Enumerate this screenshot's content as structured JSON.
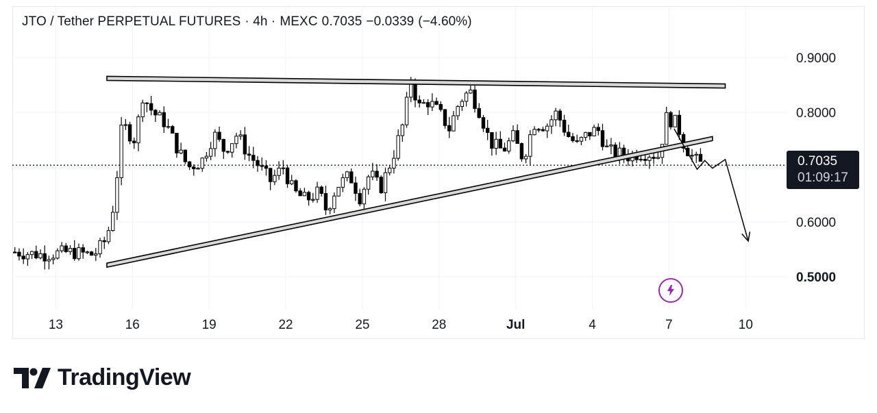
{
  "header": {
    "symbol": "JTO / Tether PERPETUAL FUTURES",
    "interval": "· 4h ·",
    "exchange": "MEXC",
    "last": "0.7035",
    "change": "−0.0339",
    "change_pct": "(−4.60%)"
  },
  "price_tag": {
    "price": "0.7035",
    "countdown": "01:09:17"
  },
  "brand": {
    "name": "TradingView"
  },
  "colors": {
    "candle": "#000000",
    "grid": "#f0f3fa",
    "tag_bg": "#131722",
    "accent": "#9c27b0",
    "trend_band": "#d9d9d9"
  },
  "icons": {
    "flash": "lightning-bolt-icon",
    "logo": "tradingview-logo-icon"
  },
  "chart_data": {
    "type": "candlestick",
    "title": "JTO / Tether PERPETUAL FUTURES · 4h · MEXC",
    "y_ticks": [
      "0.9000",
      "0.8000",
      "0.6000",
      "0.5000"
    ],
    "y_tick_values": [
      0.9,
      0.8,
      0.6,
      0.5
    ],
    "ylim": [
      0.44,
      0.955
    ],
    "x_ticks": [
      {
        "label": "13",
        "day": 13
      },
      {
        "label": "16",
        "day": 16
      },
      {
        "label": "19",
        "day": 19
      },
      {
        "label": "22",
        "day": 22
      },
      {
        "label": "25",
        "day": 25
      },
      {
        "label": "28",
        "day": 28
      },
      {
        "label": "Jul",
        "day": 31
      },
      {
        "label": "4",
        "day": 34
      },
      {
        "label": "7",
        "day": 37
      },
      {
        "label": "10",
        "day": 40
      }
    ],
    "xlim": [
      11.3,
      41.6
    ],
    "last_price": 0.7035,
    "grid": true,
    "path": [
      [
        11.4,
        0.545
      ],
      [
        12.5,
        0.54
      ],
      [
        13.5,
        0.545
      ],
      [
        14.5,
        0.54
      ],
      [
        15.0,
        0.57
      ],
      [
        15.3,
        0.64
      ],
      [
        15.6,
        0.78
      ],
      [
        15.9,
        0.76
      ],
      [
        16.1,
        0.75
      ],
      [
        16.4,
        0.83
      ],
      [
        16.8,
        0.8
      ],
      [
        17.3,
        0.78
      ],
      [
        17.8,
        0.73
      ],
      [
        18.2,
        0.7
      ],
      [
        18.7,
        0.71
      ],
      [
        19.2,
        0.76
      ],
      [
        19.6,
        0.73
      ],
      [
        20.1,
        0.76
      ],
      [
        20.5,
        0.725
      ],
      [
        20.9,
        0.705
      ],
      [
        21.4,
        0.675
      ],
      [
        21.9,
        0.7
      ],
      [
        22.3,
        0.655
      ],
      [
        22.8,
        0.64
      ],
      [
        23.3,
        0.655
      ],
      [
        23.6,
        0.62
      ],
      [
        24.0,
        0.665
      ],
      [
        24.5,
        0.685
      ],
      [
        24.9,
        0.645
      ],
      [
        25.3,
        0.69
      ],
      [
        25.7,
        0.66
      ],
      [
        26.2,
        0.72
      ],
      [
        26.6,
        0.78
      ],
      [
        26.9,
        0.86
      ],
      [
        27.2,
        0.81
      ],
      [
        27.6,
        0.82
      ],
      [
        28.0,
        0.8
      ],
      [
        28.4,
        0.77
      ],
      [
        28.8,
        0.82
      ],
      [
        29.2,
        0.84
      ],
      [
        29.6,
        0.8
      ],
      [
        30.0,
        0.745
      ],
      [
        30.5,
        0.73
      ],
      [
        30.9,
        0.755
      ],
      [
        31.3,
        0.715
      ],
      [
        31.7,
        0.78
      ],
      [
        32.2,
        0.775
      ],
      [
        32.6,
        0.8
      ],
      [
        33.0,
        0.76
      ],
      [
        33.4,
        0.74
      ],
      [
        33.8,
        0.76
      ],
      [
        34.2,
        0.77
      ],
      [
        34.6,
        0.73
      ],
      [
        35.0,
        0.725
      ],
      [
        35.4,
        0.72
      ],
      [
        35.8,
        0.725
      ],
      [
        36.2,
        0.725
      ],
      [
        36.6,
        0.72
      ],
      [
        36.9,
        0.79
      ],
      [
        37.3,
        0.78
      ],
      [
        37.6,
        0.74
      ],
      [
        37.9,
        0.72
      ],
      [
        38.2,
        0.705
      ],
      [
        38.35,
        0.71
      ]
    ],
    "trendlines": [
      {
        "name": "resistance",
        "from": [
          15.0,
          0.862
        ],
        "to": [
          39.2,
          0.848
        ]
      },
      {
        "name": "support",
        "from": [
          15.0,
          0.521
        ],
        "to": [
          38.7,
          0.752
        ]
      }
    ],
    "projection": [
      [
        37.2,
        0.77
      ],
      [
        38.1,
        0.696
      ],
      [
        38.4,
        0.712
      ],
      [
        38.7,
        0.698
      ],
      [
        39.2,
        0.714
      ],
      [
        40.1,
        0.565
      ]
    ]
  }
}
